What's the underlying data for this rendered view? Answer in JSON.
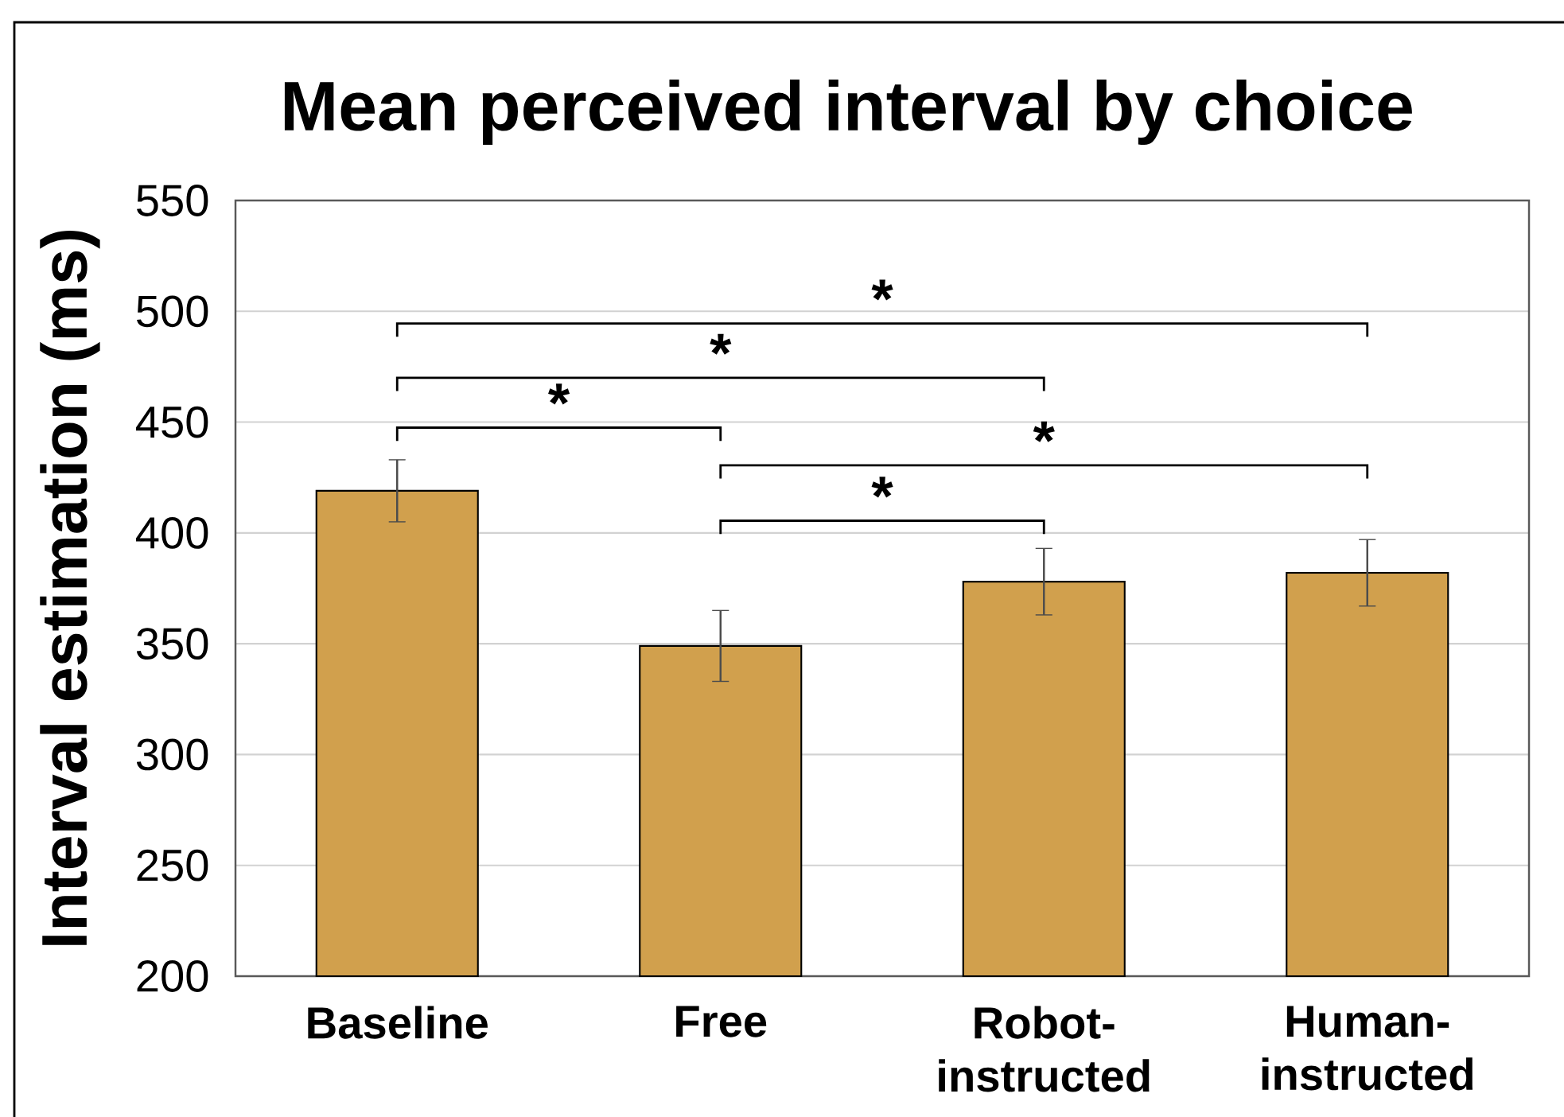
{
  "chart_data": {
    "type": "bar",
    "title": "Mean perceived interval by choice",
    "ylabel": "Interval estimation (ms)",
    "categories": [
      "Baseline",
      "Free",
      "Robot-instructed",
      "Human-instructed"
    ],
    "values": [
      419,
      349,
      378,
      382
    ],
    "errors": [
      14,
      16,
      15,
      15
    ],
    "color": "#d1a04d",
    "ylim": [
      200,
      550
    ],
    "yticks": [
      200,
      250,
      300,
      350,
      400,
      450,
      500,
      550
    ],
    "grid": "y",
    "annotations": [
      "*",
      "*",
      "*",
      "*",
      "*"
    ]
  }
}
